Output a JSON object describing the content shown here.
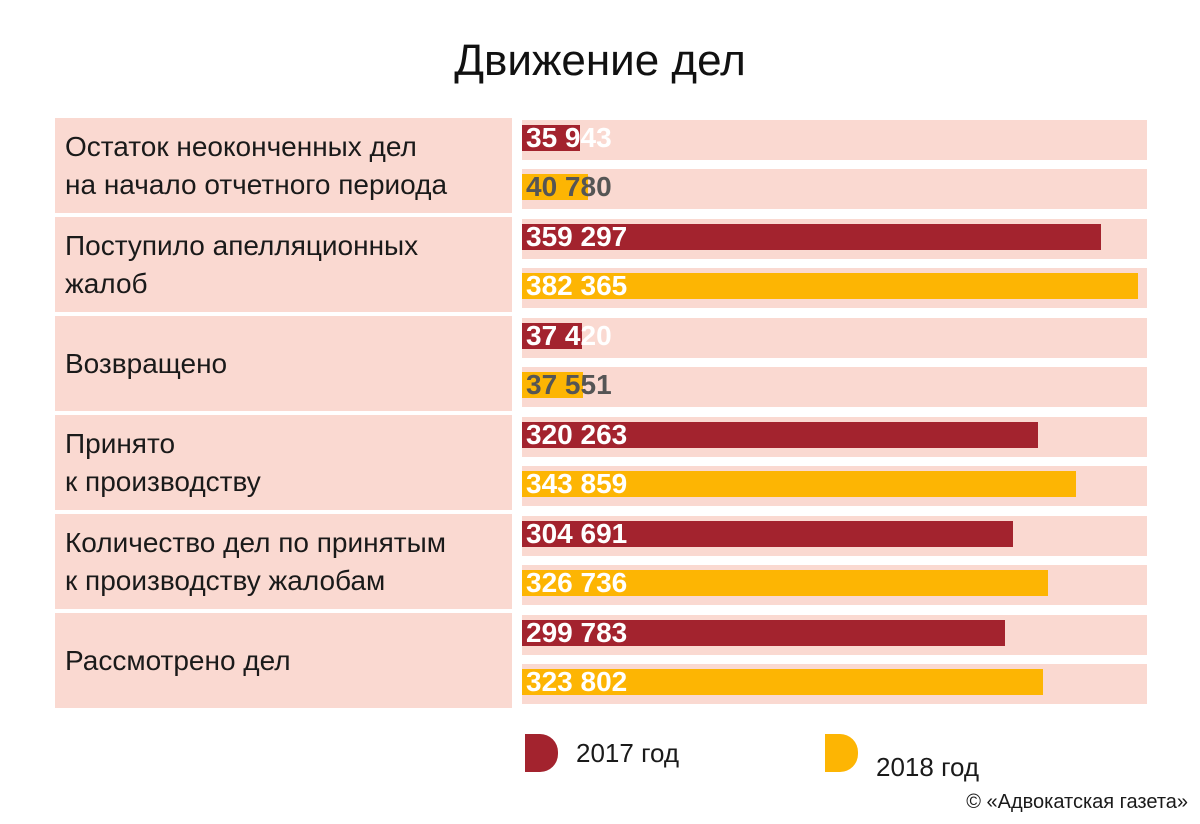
{
  "chart_data": {
    "type": "bar",
    "orientation": "horizontal",
    "title": "Движение дел",
    "categories": [
      "Остаток неоконченных дел\nна начало отчетного периода",
      "Поступило апелляционных\nжалоб",
      "Возвращено",
      "Принято\nк производству",
      "Количество дел по принятым\nк производству жалобам",
      "Рассмотрено дел"
    ],
    "series": [
      {
        "name": "2017 год",
        "color": "#a3232e",
        "values": [
          35943,
          359297,
          37420,
          320263,
          304691,
          299783
        ],
        "labels": [
          "35 943",
          "359 297",
          "37 420",
          "320 263",
          "304 691",
          "299 783"
        ]
      },
      {
        "name": "2018 год",
        "color": "#fdb503",
        "values": [
          40780,
          382365,
          37551,
          343859,
          326736,
          323802
        ],
        "labels": [
          "40 780",
          "382 365",
          "37 551",
          "343 859",
          "326 736",
          "323 802"
        ]
      }
    ],
    "xlim": [
      0,
      385000
    ],
    "legend_position": "bottom",
    "grid": false
  },
  "credit": "© «Адвокатская газета»"
}
